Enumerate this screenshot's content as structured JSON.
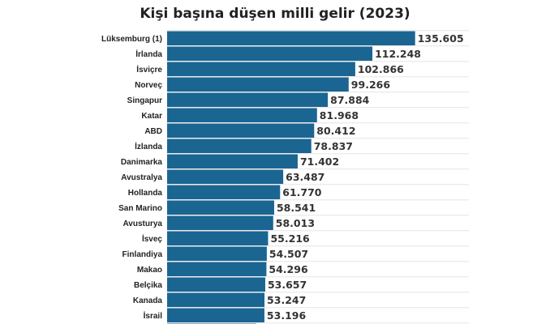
{
  "chart_data": {
    "type": "bar",
    "orientation": "horizontal",
    "title": "Kişi başına düşen milli gelir (2023)",
    "xlabel": "",
    "ylabel": "",
    "xlim": [
      0,
      165000
    ],
    "grid": true,
    "bar_color": "#1b6592",
    "categories": [
      "Lüksemburg (1)",
      "İrlanda",
      "İsviçre",
      "Norveç",
      "Singapur",
      "Katar",
      "ABD",
      "İzlanda",
      "Danimarka",
      "Avustralya",
      "Hollanda",
      "San Marino",
      "Avusturya",
      "İsveç",
      "Finlandiya",
      "Makao",
      "Belçika",
      "Kanada",
      "İsrail"
    ],
    "values": [
      135605,
      112248,
      102866,
      99266,
      87884,
      81968,
      80412,
      78837,
      71402,
      63487,
      61770,
      58541,
      58013,
      55216,
      54507,
      54296,
      53657,
      53247,
      53196
    ],
    "value_labels": [
      "135.605",
      "112.248",
      "102.866",
      "99.266",
      "87.884",
      "81.968",
      "80.412",
      "78.837",
      "71.402",
      "63.487",
      "61.770",
      "58.541",
      "58.013",
      "55.216",
      "54.507",
      "54.296",
      "53.657",
      "53.247",
      "53.196"
    ]
  }
}
